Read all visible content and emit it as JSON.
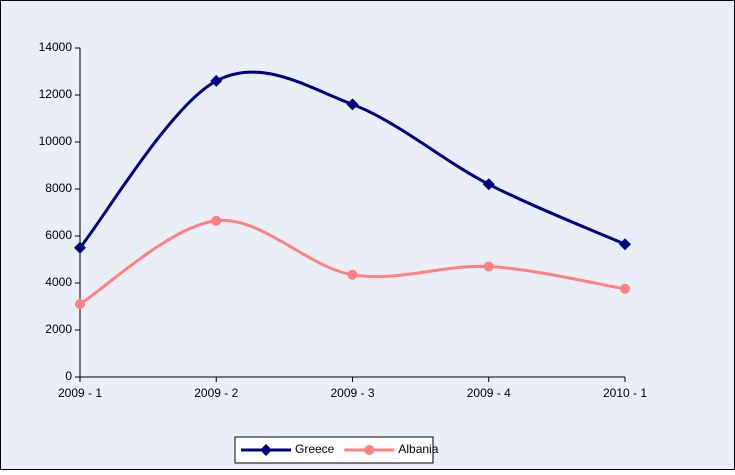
{
  "chart_data": {
    "type": "line",
    "categories": [
      "2009 - 1",
      "2009 - 2",
      "2009 - 3",
      "2009 - 4",
      "2010 - 1"
    ],
    "series": [
      {
        "name": "Greece",
        "color": "#000080",
        "marker": "diamond",
        "values": [
          5500,
          12600,
          11600,
          8200,
          5650
        ]
      },
      {
        "name": "Albania",
        "color": "#ff8080",
        "marker": "circle",
        "values": [
          3100,
          6650,
          4350,
          4700,
          3750
        ]
      }
    ],
    "ylim": [
      0,
      14000
    ],
    "yticks": [
      0,
      2000,
      4000,
      6000,
      8000,
      10000,
      12000,
      14000
    ],
    "smooth": true,
    "grid": false,
    "legend": "bottom"
  }
}
